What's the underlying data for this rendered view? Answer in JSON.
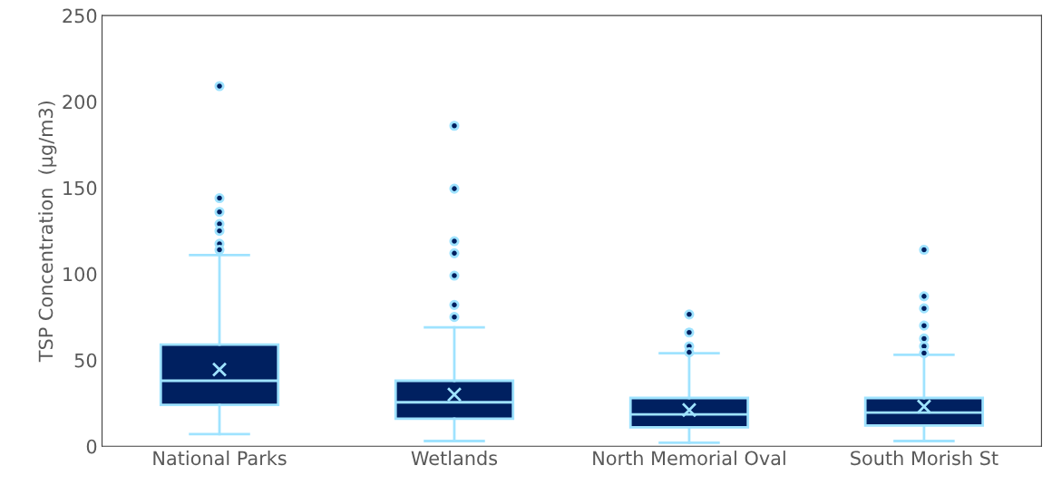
{
  "chart_data": {
    "type": "box",
    "ylabel": "TSP Concentration  (µg/m3)",
    "categories": [
      "National Parks",
      "Wetlands",
      "North Memorial Oval",
      "South Morish St"
    ],
    "ylim": [
      0,
      250
    ],
    "yticks": [
      0,
      50,
      100,
      150,
      200,
      250
    ],
    "grid": false,
    "series": [
      {
        "color": "#002060",
        "boxes": [
          {
            "low": 7,
            "q1": 24,
            "median": 38,
            "q3": 59,
            "high": 111,
            "mean": 44.5,
            "outliers": [
              209,
              144,
              136,
              129,
              125,
              117.5,
              114
            ]
          },
          {
            "low": 3,
            "q1": 16,
            "median": 25.5,
            "q3": 38,
            "high": 69,
            "mean": 30,
            "outliers": [
              186,
              149.5,
              119,
              112,
              99,
              82,
              75
            ]
          },
          {
            "low": 2,
            "q1": 11,
            "median": 18.5,
            "q3": 28,
            "high": 54,
            "mean": 21,
            "outliers": [
              76.5,
              66,
              58,
              54.5
            ]
          },
          {
            "low": 3,
            "q1": 12,
            "median": 19.5,
            "q3": 28,
            "high": 53,
            "mean": 23,
            "outliers": [
              114,
              87,
              80,
              70,
              62.5,
              58,
              54
            ]
          }
        ]
      }
    ]
  }
}
